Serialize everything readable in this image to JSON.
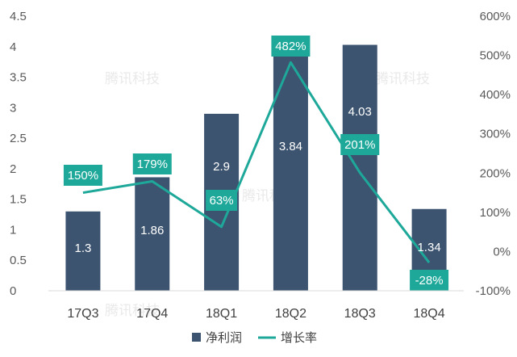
{
  "watermark": "腾讯科技",
  "colors": {
    "bar": "#3c5470",
    "line": "#1ea89a",
    "label_box": "#1ea89a"
  },
  "chart_data": {
    "type": "bar",
    "categories": [
      "17Q3",
      "17Q4",
      "18Q1",
      "18Q2",
      "18Q3",
      "18Q4"
    ],
    "series": [
      {
        "name": "净利润",
        "type": "bar",
        "axis": "left",
        "values": [
          1.3,
          1.86,
          2.9,
          3.84,
          4.03,
          1.34
        ],
        "labels": [
          "1.3",
          "1.86",
          "2.9",
          "3.84",
          "4.03",
          "1.34"
        ]
      },
      {
        "name": "增长率",
        "type": "line",
        "axis": "right",
        "values": [
          150,
          179,
          63,
          482,
          201,
          -28
        ],
        "labels": [
          "150%",
          "179%",
          "63%",
          "482%",
          "201%",
          "-28%"
        ]
      }
    ],
    "y_left": {
      "min": 0,
      "max": 4.5,
      "ticks": [
        "0",
        "0.5",
        "1",
        "1.5",
        "2",
        "2.5",
        "3",
        "3.5",
        "4",
        "4.5"
      ]
    },
    "y_right": {
      "min": -100,
      "max": 600,
      "ticks": [
        "-100%",
        "0%",
        "100%",
        "200%",
        "300%",
        "400%",
        "500%",
        "600%"
      ]
    },
    "grid": false,
    "legend": "bottom-center"
  }
}
